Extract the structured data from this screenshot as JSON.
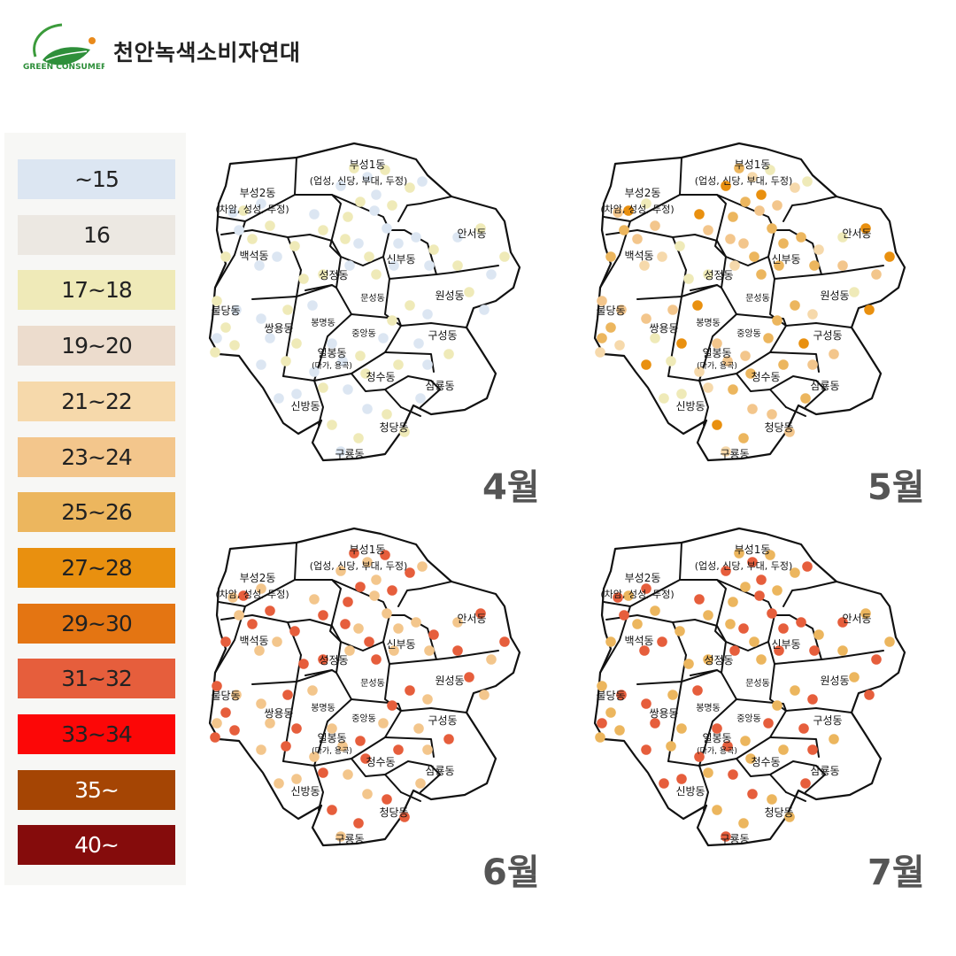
{
  "header": {
    "logo_text": "GREEN CONSUMER",
    "org_name": "천안녹색소비자연대",
    "logo_icon": "leaf-icon"
  },
  "legend": [
    {
      "label": "~15",
      "color": "#dce6f2"
    },
    {
      "label": "16",
      "color": "#ece8e2"
    },
    {
      "label": "17~18",
      "color": "#efeab8"
    },
    {
      "label": "19~20",
      "color": "#ecdccd"
    },
    {
      "label": "21~22",
      "color": "#f6d9ab"
    },
    {
      "label": "23~24",
      "color": "#f3c68c"
    },
    {
      "label": "25~26",
      "color": "#ecb65e"
    },
    {
      "label": "27~28",
      "color": "#e9900f"
    },
    {
      "label": "29~30",
      "color": "#e47512"
    },
    {
      "label": "31~32",
      "color": "#e65e3c"
    },
    {
      "label": "33~34",
      "color": "#fc0707"
    },
    {
      "label": "35~",
      "color": "#a54504"
    },
    {
      "label": "40~",
      "color": "#850c0c"
    }
  ],
  "districts": [
    {
      "name": "부성1동",
      "sub": "(업성, 신당, 부대, 두정)"
    },
    {
      "name": "부성2동",
      "sub": "(차암, 성성, 두정)"
    },
    {
      "name": "안서동",
      "sub": ""
    },
    {
      "name": "백석동",
      "sub": ""
    },
    {
      "name": "신부동",
      "sub": ""
    },
    {
      "name": "성정동",
      "sub": ""
    },
    {
      "name": "문성동",
      "sub": ""
    },
    {
      "name": "원성동",
      "sub": ""
    },
    {
      "name": "불당동",
      "sub": ""
    },
    {
      "name": "봉명동",
      "sub": ""
    },
    {
      "name": "중앙동",
      "sub": ""
    },
    {
      "name": "쌍용동",
      "sub": ""
    },
    {
      "name": "구성동",
      "sub": ""
    },
    {
      "name": "일봉동",
      "sub": "(다가, 용곡)"
    },
    {
      "name": "청수동",
      "sub": ""
    },
    {
      "name": "삼룡동",
      "sub": ""
    },
    {
      "name": "신방동",
      "sub": ""
    },
    {
      "name": "청당동",
      "sub": ""
    },
    {
      "name": "구룡동",
      "sub": ""
    }
  ],
  "maps": [
    {
      "month": "4월",
      "palette": [
        "#efeab8",
        "#ecdccd",
        "#ece8e2",
        "#f6d9ab",
        "#dce6f2",
        "#efeab8",
        "#ecdccd",
        "#f3c68c"
      ]
    },
    {
      "month": "5월",
      "palette": [
        "#f3c68c",
        "#ecb65e",
        "#f6d9ab",
        "#e9900f",
        "#f3c68c",
        "#ecb65e",
        "#efeab8"
      ]
    },
    {
      "month": "6월",
      "palette": [
        "#e47512",
        "#e9900f",
        "#e65e3c",
        "#ecb65e",
        "#e47512",
        "#e9900f",
        "#f3c68c",
        "#fc0707"
      ]
    },
    {
      "month": "7월",
      "palette": [
        "#e65e3c",
        "#e47512",
        "#fc0707",
        "#e65e3c",
        "#e9900f",
        "#e47512",
        "#e65e3c",
        "#ecb65e"
      ]
    }
  ]
}
